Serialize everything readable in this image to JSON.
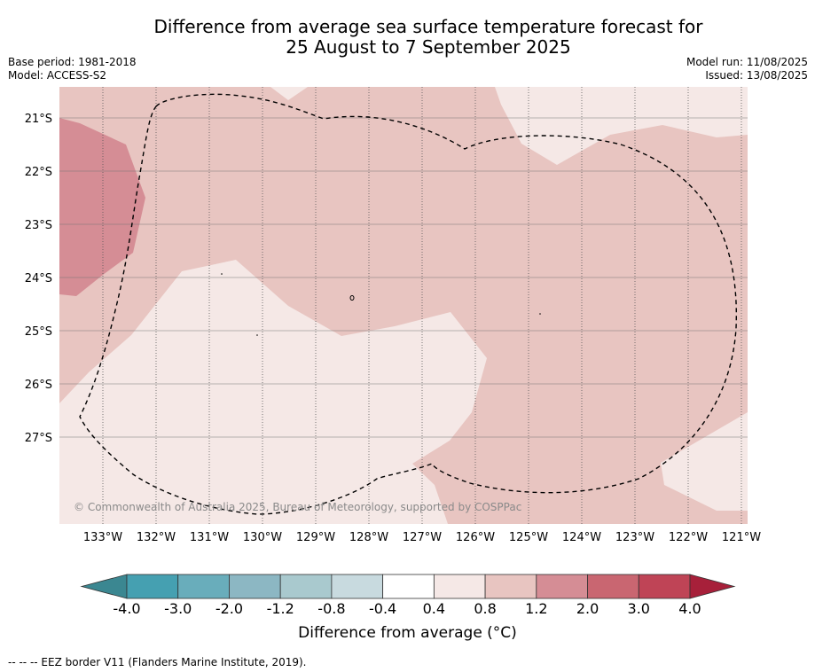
{
  "title_line1": "Difference from average sea surface temperature forecast for",
  "title_line2": "25 August to 7 September 2025",
  "meta_left": [
    "Base period: 1981-2018",
    "Model: ACCESS-S2"
  ],
  "meta_right": [
    "Model run: 11/08/2025",
    "Issued: 13/08/2025"
  ],
  "lat_labels": [
    "21°S",
    "22°S",
    "23°S",
    "24°S",
    "25°S",
    "26°S",
    "27°S"
  ],
  "lon_labels": [
    "133°W",
    "132°W",
    "131°W",
    "130°W",
    "129°W",
    "128°W",
    "127°W",
    "126°W",
    "125°W",
    "124°W",
    "123°W",
    "122°W",
    "121°W"
  ],
  "copyright": "© Commonwealth of Australia 2025, Bureau of Meteorology, supported by COSPPac",
  "colorbar": {
    "ticks": [
      "-4.0",
      "-3.0",
      "-2.0",
      "-1.2",
      "-0.8",
      "-0.4",
      "0.4",
      "0.8",
      "1.2",
      "2.0",
      "3.0",
      "4.0"
    ],
    "colors": [
      "#3b8791",
      "#45a0b1",
      "#69adbb",
      "#8cb7c3",
      "#a9c9ce",
      "#c8dadf",
      "#ffffff",
      "#f5e8e6",
      "#e8c5c1",
      "#d58d95",
      "#c96671",
      "#bf4456",
      "#a7203a"
    ],
    "label": "Difference from average (°C)"
  },
  "region_colors": {
    "c0.4_0.8": "#f5e8e6",
    "c0.8_1.2": "#e8c5c1",
    "c1.2_2.0": "#d58d95"
  },
  "legend_footer": "--  --  -- EEZ border V11 (Flanders Marine Institute, 2019)."
}
